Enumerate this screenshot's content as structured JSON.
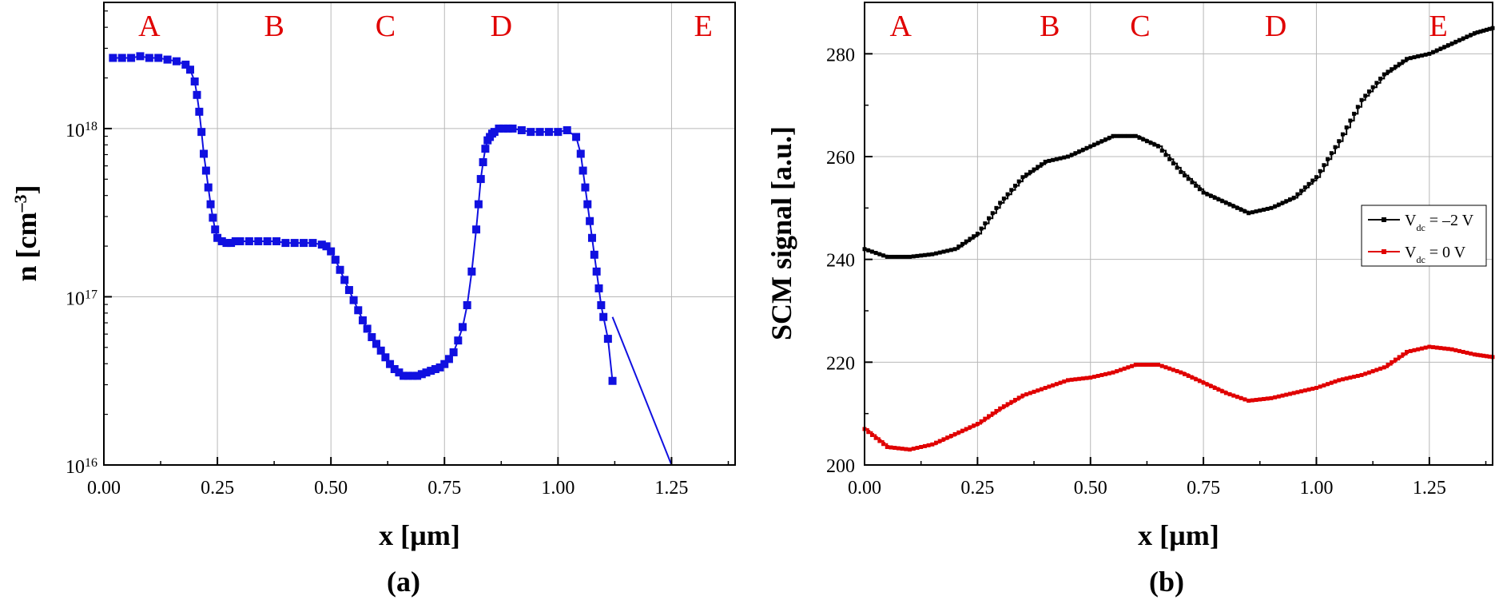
{
  "chart_data": [
    {
      "type": "scatter",
      "panel_label": "(a)",
      "xlabel": "x [µm]",
      "ylabel_parts": [
        "n [cm",
        "–3",
        "]"
      ],
      "xlim": [
        0.0,
        1.39
      ],
      "ylim_log10": [
        16,
        18.75
      ],
      "yscale": "log",
      "grid": true,
      "xticks": [
        "0.00",
        "0.25",
        "0.50",
        "0.75",
        "1.00",
        "1.25"
      ],
      "xtick_values": [
        0.0,
        0.25,
        0.5,
        0.75,
        1.0,
        1.25
      ],
      "yticks": [
        {
          "base": "10",
          "exp": "16",
          "log": 16
        },
        {
          "base": "10",
          "exp": "17",
          "log": 17
        },
        {
          "base": "10",
          "exp": "18",
          "log": 18
        }
      ],
      "regions": [
        {
          "label": "A",
          "x": 0.1
        },
        {
          "label": "B",
          "x": 0.375
        },
        {
          "label": "C",
          "x": 0.62
        },
        {
          "label": "D",
          "x": 0.875
        },
        {
          "label": "E",
          "x": 1.32
        }
      ],
      "series": [
        {
          "color": "#1010e0",
          "marker": "square",
          "x": [
            0.02,
            0.04,
            0.06,
            0.08,
            0.1,
            0.12,
            0.14,
            0.16,
            0.18,
            0.19,
            0.2,
            0.205,
            0.21,
            0.215,
            0.22,
            0.225,
            0.23,
            0.235,
            0.24,
            0.245,
            0.25,
            0.26,
            0.27,
            0.28,
            0.29,
            0.3,
            0.32,
            0.34,
            0.36,
            0.38,
            0.4,
            0.42,
            0.44,
            0.46,
            0.48,
            0.49,
            0.5,
            0.51,
            0.52,
            0.53,
            0.54,
            0.55,
            0.56,
            0.57,
            0.58,
            0.59,
            0.6,
            0.61,
            0.62,
            0.63,
            0.64,
            0.65,
            0.66,
            0.67,
            0.68,
            0.69,
            0.7,
            0.71,
            0.72,
            0.73,
            0.74,
            0.75,
            0.76,
            0.77,
            0.78,
            0.79,
            0.8,
            0.81,
            0.82,
            0.825,
            0.83,
            0.835,
            0.84,
            0.845,
            0.85,
            0.855,
            0.86,
            0.87,
            0.88,
            0.89,
            0.9,
            0.92,
            0.94,
            0.96,
            0.98,
            1.0,
            1.02,
            1.04,
            1.05,
            1.055,
            1.06,
            1.065,
            1.07,
            1.075,
            1.08,
            1.085,
            1.09,
            1.095,
            1.1,
            1.11,
            1.12
          ],
          "log_y": [
            18.42,
            18.42,
            18.42,
            18.43,
            18.42,
            18.42,
            18.41,
            18.4,
            18.38,
            18.35,
            18.28,
            18.2,
            18.1,
            17.98,
            17.85,
            17.75,
            17.65,
            17.55,
            17.47,
            17.4,
            17.35,
            17.33,
            17.32,
            17.32,
            17.33,
            17.33,
            17.33,
            17.33,
            17.33,
            17.33,
            17.32,
            17.32,
            17.32,
            17.32,
            17.31,
            17.3,
            17.27,
            17.22,
            17.16,
            17.1,
            17.04,
            16.98,
            16.92,
            16.86,
            16.81,
            16.76,
            16.72,
            16.68,
            16.64,
            16.6,
            16.57,
            16.55,
            16.53,
            16.53,
            16.53,
            16.53,
            16.54,
            16.55,
            16.56,
            16.57,
            16.58,
            16.6,
            16.63,
            16.67,
            16.74,
            16.82,
            16.95,
            17.15,
            17.4,
            17.55,
            17.7,
            17.8,
            17.88,
            17.93,
            17.95,
            17.97,
            17.98,
            18.0,
            18.0,
            18.0,
            18.0,
            17.99,
            17.98,
            17.98,
            17.98,
            17.98,
            17.99,
            17.95,
            17.85,
            17.75,
            17.65,
            17.55,
            17.45,
            17.35,
            17.25,
            17.15,
            17.05,
            16.95,
            16.88,
            16.75,
            16.5
          ],
          "tail_line": {
            "from": [
              1.12,
              16.88
            ],
            "to": [
              1.25,
              16.0
            ]
          }
        }
      ]
    },
    {
      "type": "line",
      "panel_label": "(b)",
      "xlabel": "x [µm]",
      "ylabel": "SCM signal [a.u.]",
      "xlim": [
        0.0,
        1.39
      ],
      "ylim": [
        200,
        290
      ],
      "grid": true,
      "xticks": [
        "0.00",
        "0.25",
        "0.50",
        "0.75",
        "1.00",
        "1.25"
      ],
      "xtick_values": [
        0.0,
        0.25,
        0.5,
        0.75,
        1.0,
        1.25
      ],
      "yticks": [
        "200",
        "220",
        "240",
        "260",
        "280"
      ],
      "ytick_values": [
        200,
        220,
        240,
        260,
        280
      ],
      "regions": [
        {
          "label": "A",
          "x": 0.08
        },
        {
          "label": "B",
          "x": 0.41
        },
        {
          "label": "C",
          "x": 0.61
        },
        {
          "label": "D",
          "x": 0.91
        },
        {
          "label": "E",
          "x": 1.27
        }
      ],
      "legend": {
        "placement": "right"
      },
      "series": [
        {
          "name_parts": [
            "V",
            "dc",
            " = –2 V"
          ],
          "color": "#000000",
          "x": [
            0.0,
            0.05,
            0.1,
            0.15,
            0.2,
            0.25,
            0.3,
            0.35,
            0.4,
            0.45,
            0.5,
            0.55,
            0.6,
            0.65,
            0.7,
            0.75,
            0.8,
            0.85,
            0.9,
            0.95,
            1.0,
            1.05,
            1.1,
            1.15,
            1.2,
            1.25,
            1.3,
            1.35,
            1.39
          ],
          "y": [
            242,
            240.5,
            240.5,
            241,
            242,
            245,
            251,
            256,
            259,
            260,
            262,
            264,
            264,
            262,
            257,
            253,
            251,
            249,
            250,
            252,
            256,
            263,
            271,
            276,
            279,
            280,
            282,
            284,
            285
          ]
        },
        {
          "name_parts": [
            "V",
            "dc",
            " = 0 V"
          ],
          "color": "#e00000",
          "x": [
            0.0,
            0.05,
            0.1,
            0.15,
            0.2,
            0.25,
            0.3,
            0.35,
            0.4,
            0.45,
            0.5,
            0.55,
            0.6,
            0.65,
            0.7,
            0.75,
            0.8,
            0.85,
            0.9,
            0.95,
            1.0,
            1.05,
            1.1,
            1.15,
            1.2,
            1.25,
            1.3,
            1.35,
            1.39
          ],
          "y": [
            207,
            203.5,
            203,
            204,
            206,
            208,
            211,
            213.5,
            215,
            216.5,
            217,
            218,
            219.5,
            219.5,
            218,
            216,
            214,
            212.5,
            213,
            214,
            215,
            216.5,
            217.5,
            219,
            222,
            223,
            222.5,
            221.5,
            221
          ]
        }
      ]
    }
  ]
}
